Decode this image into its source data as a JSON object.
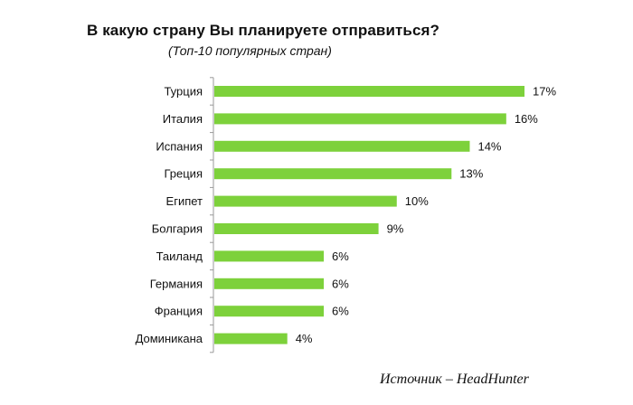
{
  "chart_data": {
    "type": "bar",
    "orientation": "horizontal",
    "title": "В какую страну Вы планируете отправиться?",
    "subtitle": "(Топ-10 популярных стран)",
    "categories": [
      "Турция",
      "Италия",
      "Испания",
      "Греция",
      "Египет",
      "Болгария",
      "Таиланд",
      "Германия",
      "Франция",
      "Доминикана"
    ],
    "values": [
      17,
      16,
      14,
      13,
      10,
      9,
      6,
      6,
      6,
      4
    ],
    "value_labels": [
      "17%",
      "16%",
      "14%",
      "13%",
      "10%",
      "9%",
      "6%",
      "6%",
      "6%",
      "4%"
    ],
    "value_suffix": "%",
    "xlim": [
      0,
      17
    ],
    "grid": false,
    "legend": "none",
    "bar_color": "#7dd13b",
    "axis_color": "#9a9a9a"
  },
  "footer": {
    "source": "Источник – HeadHunter"
  }
}
